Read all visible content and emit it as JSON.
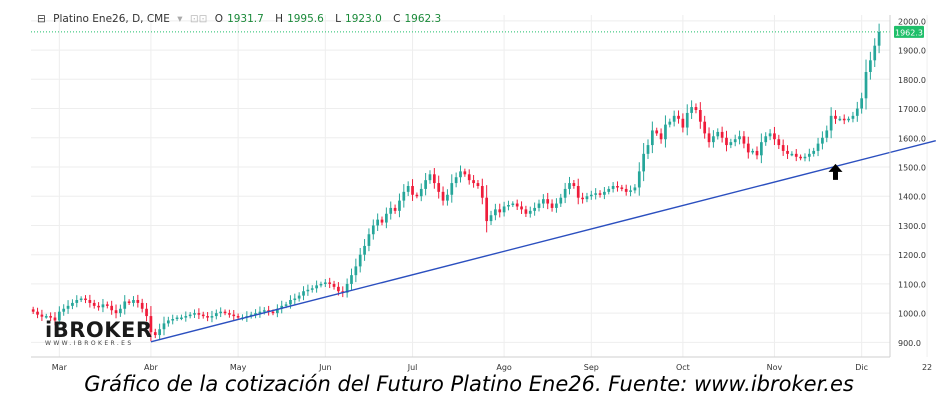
{
  "header": {
    "symbol": "Platino Ene26, D, CME",
    "o_label": "O",
    "o_value": "1931.7",
    "h_label": "H",
    "h_value": "1995.6",
    "l_label": "L",
    "l_value": "1923.0",
    "c_label": "C",
    "c_value": "1962.3"
  },
  "logo": {
    "name": "iBROKER",
    "url": "WWW.IBROKER.ES"
  },
  "caption": "Gráfico de la cotización del Futuro Platino Ene26. Fuente: www.ibroker.es",
  "colors": {
    "up": "#26a69a",
    "down": "#ef1c3a",
    "trend": "#2b4fbf",
    "last_price": "#1fbf6a",
    "grid": "#eeeeee"
  },
  "chart_data": {
    "type": "candlestick",
    "title": "Platino Ene26, D, CME",
    "xlabel": "",
    "ylabel": "",
    "ylim": [
      850,
      2020
    ],
    "y_ticks": [
      900,
      1000,
      1100,
      1200,
      1300,
      1400,
      1500,
      1600,
      1700,
      1800,
      1900,
      2000
    ],
    "y_tick_labels": [
      "900.0",
      "1000.0",
      "1100.0",
      "1200.0",
      "1300.0",
      "1400.0",
      "1500.0",
      "1600.0",
      "1700.0",
      "1800.0",
      "1900.0",
      "2000.0"
    ],
    "x_tick_labels": [
      "Mar",
      "Abr",
      "May",
      "Jun",
      "Jul",
      "Ago",
      "Sep",
      "Oct",
      "Nov",
      "Dic",
      "22"
    ],
    "x_tick_index": [
      6,
      27,
      47,
      67,
      87,
      108,
      128,
      149,
      170,
      190,
      205
    ],
    "last_price": 1962.3,
    "last_price_label": "1962.3",
    "grid": true,
    "trendline": {
      "start": {
        "index": 27,
        "value": 902
      },
      "end": {
        "index": 207,
        "value": 1590
      }
    },
    "annotation": {
      "type": "arrow-up",
      "index": 184,
      "value": 1480
    },
    "close": [
      1005,
      995,
      988,
      990,
      985,
      975,
      1005,
      1015,
      1025,
      1035,
      1045,
      1050,
      1045,
      1035,
      1025,
      1020,
      1030,
      1025,
      1010,
      1000,
      1015,
      1040,
      1035,
      1045,
      1035,
      1015,
      990,
      935,
      925,
      945,
      965,
      975,
      980,
      985,
      985,
      990,
      995,
      1000,
      995,
      990,
      985,
      990,
      1000,
      1005,
      1000,
      995,
      990,
      985,
      985,
      990,
      995,
      1000,
      1005,
      1010,
      1005,
      1000,
      1015,
      1025,
      1030,
      1045,
      1050,
      1060,
      1075,
      1080,
      1085,
      1095,
      1100,
      1105,
      1100,
      1090,
      1075,
      1070,
      1100,
      1130,
      1160,
      1200,
      1230,
      1270,
      1300,
      1320,
      1310,
      1340,
      1360,
      1350,
      1385,
      1415,
      1435,
      1405,
      1400,
      1425,
      1455,
      1475,
      1445,
      1415,
      1385,
      1405,
      1445,
      1465,
      1485,
      1475,
      1455,
      1445,
      1435,
      1395,
      1315,
      1335,
      1355,
      1345,
      1365,
      1370,
      1375,
      1365,
      1355,
      1340,
      1350,
      1360,
      1375,
      1390,
      1375,
      1360,
      1375,
      1395,
      1425,
      1445,
      1435,
      1395,
      1390,
      1400,
      1405,
      1410,
      1405,
      1415,
      1425,
      1435,
      1430,
      1425,
      1415,
      1420,
      1430,
      1485,
      1545,
      1575,
      1625,
      1615,
      1595,
      1645,
      1655,
      1675,
      1665,
      1635,
      1685,
      1705,
      1695,
      1655,
      1615,
      1585,
      1605,
      1620,
      1600,
      1575,
      1585,
      1595,
      1605,
      1580,
      1550,
      1555,
      1540,
      1585,
      1605,
      1615,
      1595,
      1575,
      1555,
      1545,
      1545,
      1535,
      1530,
      1535,
      1545,
      1555,
      1580,
      1600,
      1625,
      1675,
      1665,
      1665,
      1660,
      1665,
      1675,
      1700,
      1735,
      1825,
      1865,
      1915,
      1962
    ]
  }
}
